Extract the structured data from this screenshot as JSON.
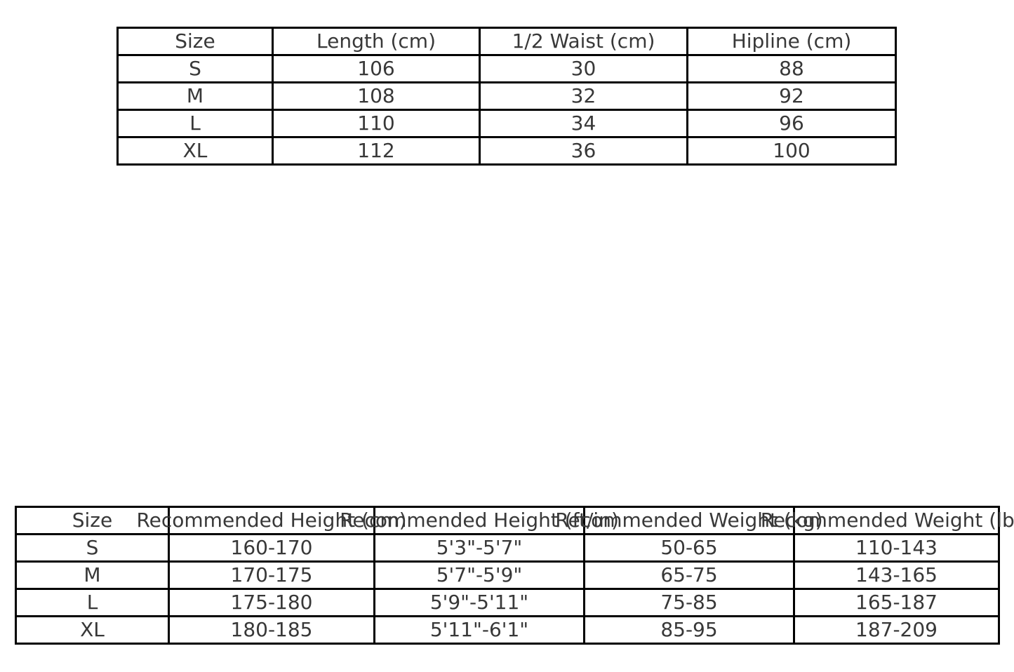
{
  "colors": {
    "background": "#ffffff",
    "table_border": "#000000",
    "text": "#383838"
  },
  "chart_data": [
    {
      "type": "table",
      "columns": [
        "Size",
        "Length (cm)",
        "1/2 Waist (cm)",
        "Hipline (cm)"
      ],
      "rows": [
        [
          "S",
          "106",
          "30",
          "88"
        ],
        [
          "M",
          "108",
          "32",
          "92"
        ],
        [
          "L",
          "110",
          "34",
          "96"
        ],
        [
          "XL",
          "112",
          "36",
          "100"
        ]
      ]
    },
    {
      "type": "table",
      "columns": [
        "Size",
        "Recommended Height (cm)",
        "Recommended Height (ft/in)",
        "Recommended Weight (kg)",
        "Recommended Weight (lbs)"
      ],
      "rows": [
        [
          "S",
          "160-170",
          "5'3\"-5'7\"",
          "50-65",
          "110-143"
        ],
        [
          "M",
          "170-175",
          "5'7\"-5'9\"",
          "65-75",
          "143-165"
        ],
        [
          "L",
          "175-180",
          "5'9\"-5'11\"",
          "75-85",
          "165-187"
        ],
        [
          "XL",
          "180-185",
          "5'11\"-6'1\"",
          "85-95",
          "187-209"
        ]
      ]
    }
  ]
}
